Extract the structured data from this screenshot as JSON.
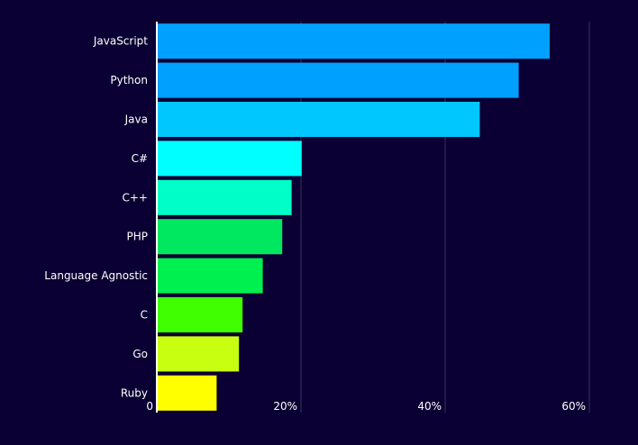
{
  "chart_data": {
    "type": "bar",
    "orientation": "horizontal",
    "categories": [
      "JavaScript",
      "Python",
      "Java",
      "C#",
      "C++",
      "PHP",
      "Language Agnostic",
      "C",
      "Go",
      "Ruby"
    ],
    "values": [
      54.5,
      50.2,
      44.8,
      20.1,
      18.7,
      17.4,
      14.7,
      11.9,
      11.4,
      8.3
    ],
    "value_unit": "%",
    "xlim": [
      0,
      67.5
    ],
    "xticks": [
      0,
      20,
      40,
      60
    ],
    "xtick_labels": [
      "0",
      "20%",
      "40%",
      "60%"
    ],
    "grid": true,
    "legend": "none",
    "bar_colors": [
      "#00a0ff",
      "#00a0ff",
      "#00c8ff",
      "#00ffff",
      "#00ffc8",
      "#00e860",
      "#00f050",
      "#40ff00",
      "#c8ff10",
      "#ffff00"
    ],
    "colors": {
      "background": "#0a0033",
      "gridline": "#3a3060",
      "axis": "#ffffff",
      "text": "#ffffff"
    }
  }
}
